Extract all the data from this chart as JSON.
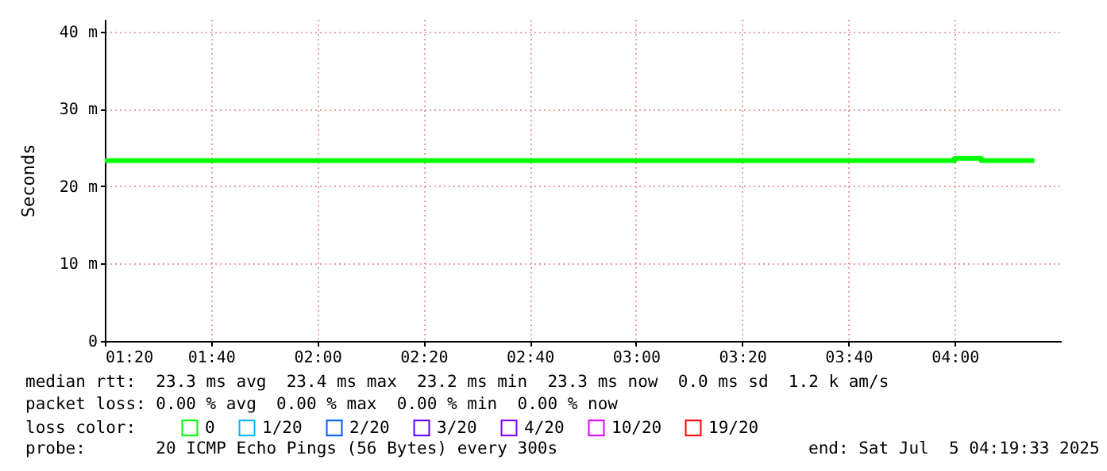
{
  "chart_data": {
    "type": "step",
    "ylabel": "Seconds",
    "legend_title": "loss color:",
    "legend": "bottom",
    "grid": true,
    "x": [
      "2025-07-05T01:20",
      "2025-07-05T01:25",
      "2025-07-05T01:30",
      "2025-07-05T01:35",
      "2025-07-05T01:40",
      "2025-07-05T01:45",
      "2025-07-05T01:50",
      "2025-07-05T01:55",
      "2025-07-05T02:00",
      "2025-07-05T02:05",
      "2025-07-05T02:10",
      "2025-07-05T02:15",
      "2025-07-05T02:20",
      "2025-07-05T02:25",
      "2025-07-05T02:30",
      "2025-07-05T02:35",
      "2025-07-05T02:40",
      "2025-07-05T02:45",
      "2025-07-05T02:50",
      "2025-07-05T02:55",
      "2025-07-05T03:00",
      "2025-07-05T03:05",
      "2025-07-05T03:10",
      "2025-07-05T03:15",
      "2025-07-05T03:20",
      "2025-07-05T03:25",
      "2025-07-05T03:30",
      "2025-07-05T03:35",
      "2025-07-05T03:40",
      "2025-07-05T03:45",
      "2025-07-05T03:50",
      "2025-07-05T03:55",
      "2025-07-05T04:00",
      "2025-07-05T04:05",
      "2025-07-05T04:10",
      "2025-07-05T04:15"
    ],
    "xlim": [
      "2025-07-05T01:20",
      "2025-07-05T04:20"
    ],
    "xticks": [
      {
        "value": "2025-07-05T01:20",
        "label": "01:20"
      },
      {
        "value": "2025-07-05T01:40",
        "label": "01:40"
      },
      {
        "value": "2025-07-05T02:00",
        "label": "02:00"
      },
      {
        "value": "2025-07-05T02:20",
        "label": "02:20"
      },
      {
        "value": "2025-07-05T02:40",
        "label": "02:40"
      },
      {
        "value": "2025-07-05T03:00",
        "label": "03:00"
      },
      {
        "value": "2025-07-05T03:20",
        "label": "03:20"
      },
      {
        "value": "2025-07-05T03:40",
        "label": "03:40"
      },
      {
        "value": "2025-07-05T04:00",
        "label": "04:00"
      }
    ],
    "ylim": [
      0,
      41.6
    ],
    "yticks": [
      0,
      {
        "value": 10,
        "label": "10 m"
      },
      {
        "value": 20,
        "label": "20 m"
      },
      {
        "value": 30,
        "label": "30 m"
      },
      {
        "value": 40,
        "label": "40 m"
      }
    ],
    "series": [
      {
        "name": "0",
        "color": "#00ff00",
        "values": [
          23.3,
          23.3,
          23.3,
          23.3,
          23.3,
          23.3,
          23.3,
          23.3,
          23.3,
          23.3,
          23.3,
          23.3,
          23.3,
          23.3,
          23.3,
          23.3,
          23.3,
          23.3,
          23.3,
          23.3,
          23.3,
          23.3,
          23.3,
          23.3,
          23.3,
          23.3,
          23.3,
          23.3,
          23.3,
          23.3,
          23.3,
          23.3,
          23.6,
          23.3,
          23.3,
          23.3
        ]
      },
      {
        "name": "1/20",
        "color": "#00b8ff",
        "values": [
          null,
          null,
          null,
          null,
          null,
          null,
          null,
          null,
          null,
          null,
          null,
          null,
          null,
          null,
          null,
          null,
          null,
          null,
          null,
          null,
          null,
          null,
          null,
          null,
          null,
          null,
          null,
          null,
          null,
          null,
          null,
          null,
          null,
          null,
          null,
          null
        ]
      },
      {
        "name": "2/20",
        "color": "#0059ff",
        "values": [
          null,
          null,
          null,
          null,
          null,
          null,
          null,
          null,
          null,
          null,
          null,
          null,
          null,
          null,
          null,
          null,
          null,
          null,
          null,
          null,
          null,
          null,
          null,
          null,
          null,
          null,
          null,
          null,
          null,
          null,
          null,
          null,
          null,
          null,
          null,
          null
        ]
      },
      {
        "name": "3/20",
        "color": "#5e00ff",
        "values": [
          null,
          null,
          null,
          null,
          null,
          null,
          null,
          null,
          null,
          null,
          null,
          null,
          null,
          null,
          null,
          null,
          null,
          null,
          null,
          null,
          null,
          null,
          null,
          null,
          null,
          null,
          null,
          null,
          null,
          null,
          null,
          null,
          null,
          null,
          null,
          null
        ]
      },
      {
        "name": "4/20",
        "color": "#7e00ff",
        "values": [
          null,
          null,
          null,
          null,
          null,
          null,
          null,
          null,
          null,
          null,
          null,
          null,
          null,
          null,
          null,
          null,
          null,
          null,
          null,
          null,
          null,
          null,
          null,
          null,
          null,
          null,
          null,
          null,
          null,
          null,
          null,
          null,
          null,
          null,
          null,
          null
        ]
      },
      {
        "name": "10/20",
        "color": "#dd00ff",
        "values": [
          null,
          null,
          null,
          null,
          null,
          null,
          null,
          null,
          null,
          null,
          null,
          null,
          null,
          null,
          null,
          null,
          null,
          null,
          null,
          null,
          null,
          null,
          null,
          null,
          null,
          null,
          null,
          null,
          null,
          null,
          null,
          null,
          null,
          null,
          null,
          null
        ]
      },
      {
        "name": "19/20",
        "color": "#ff0000",
        "values": [
          null,
          null,
          null,
          null,
          null,
          null,
          null,
          null,
          null,
          null,
          null,
          null,
          null,
          null,
          null,
          null,
          null,
          null,
          null,
          null,
          null,
          null,
          null,
          null,
          null,
          null,
          null,
          null,
          null,
          null,
          null,
          null,
          null,
          null,
          null,
          null
        ]
      }
    ],
    "annotations": [
      "median rtt:  23.3 ms avg  23.4 ms max  23.2 ms min  23.3 ms now  0.0 ms sd  1.2 k am/s",
      "packet loss: 0.00 % avg  0.00 % max  0.00 % min  0.00 % now",
      "probe:       20 ICMP Echo Pings (56 Bytes) every 300s",
      "end: Sat Jul  5 04:19:33 2025"
    ]
  }
}
